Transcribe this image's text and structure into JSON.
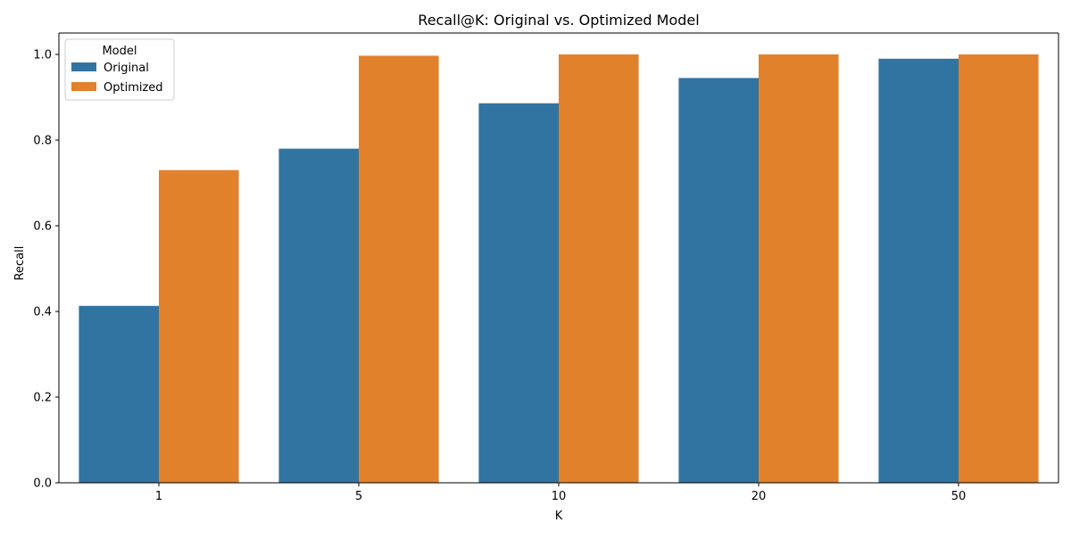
{
  "chart_data": {
    "type": "bar",
    "title": "Recall@K: Original vs. Optimized Model",
    "xlabel": "K",
    "ylabel": "Recall",
    "categories": [
      "1",
      "5",
      "10",
      "20",
      "50"
    ],
    "series": [
      {
        "name": "Original",
        "color": "#3274a1",
        "values": [
          0.413,
          0.78,
          0.886,
          0.945,
          0.99
        ]
      },
      {
        "name": "Optimized",
        "color": "#e1812c",
        "values": [
          0.73,
          0.997,
          1.0,
          1.0,
          1.0
        ]
      }
    ],
    "ylim": [
      0,
      1.05
    ],
    "yticks": [
      "0.0",
      "0.2",
      "0.4",
      "0.6",
      "0.8",
      "1.0"
    ],
    "grid": false,
    "legend": {
      "title": "Model",
      "position": "top-left"
    }
  }
}
